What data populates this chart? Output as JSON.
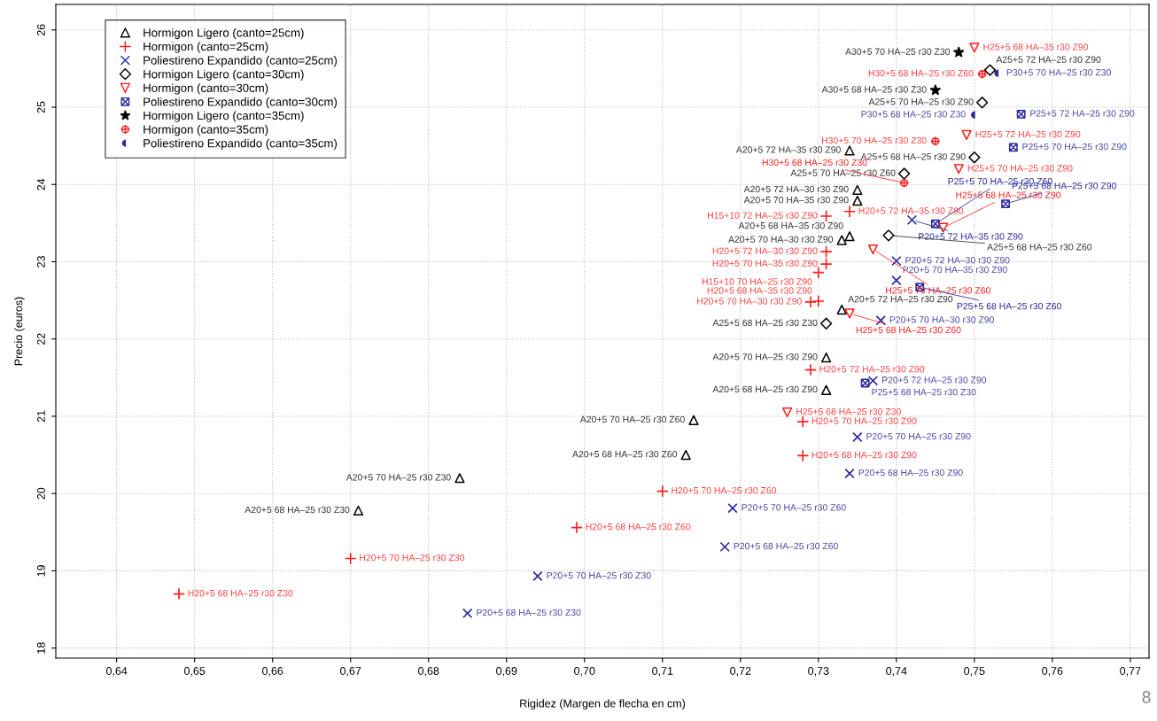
{
  "chart_data": {
    "type": "scatter",
    "xlabel": "Rigidez (Margen de flecha en cm)",
    "ylabel": "Precio (euros)",
    "xlim": [
      0.6322,
      0.7724
    ],
    "ylim": [
      17.87,
      26.33
    ],
    "xticks": [
      {
        "value": 0.64,
        "label": "0,64"
      },
      {
        "value": 0.65,
        "label": "0,65"
      },
      {
        "value": 0.66,
        "label": "0,66"
      },
      {
        "value": 0.67,
        "label": "0,67"
      },
      {
        "value": 0.68,
        "label": "0,68"
      },
      {
        "value": 0.69,
        "label": "0,69"
      },
      {
        "value": 0.7,
        "label": "0,70"
      },
      {
        "value": 0.71,
        "label": "0,71"
      },
      {
        "value": 0.72,
        "label": "0,72"
      },
      {
        "value": 0.73,
        "label": "0,73"
      },
      {
        "value": 0.74,
        "label": "0,74"
      },
      {
        "value": 0.75,
        "label": "0,75"
      },
      {
        "value": 0.76,
        "label": "0,76"
      },
      {
        "value": 0.77,
        "label": "0,77"
      }
    ],
    "yticks": [
      18,
      19,
      20,
      21,
      22,
      23,
      24,
      25,
      26
    ],
    "grid": true,
    "legend": "top left",
    "series": [
      {
        "name": "Hormigon Ligero (canto=25cm)",
        "color": "#000000",
        "marker": "triangle",
        "x": [
          0.734,
          0.735,
          0.735,
          0.734,
          0.733,
          0.733,
          0.731,
          0.731,
          0.714,
          0.713,
          0.684,
          0.671
        ],
        "values": [
          24.44,
          23.93,
          23.79,
          23.33,
          23.28,
          22.38,
          21.76,
          21.34,
          20.95,
          20.5,
          20.2,
          19.78
        ]
      },
      {
        "name": "Hormigon (canto=25cm)",
        "color": "#ff2020",
        "marker": "plus",
        "x": [
          0.734,
          0.731,
          0.731,
          0.731,
          0.73,
          0.729,
          0.73,
          0.729,
          0.728,
          0.728,
          0.71,
          0.699,
          0.67,
          0.648
        ],
        "values": [
          23.65,
          23.59,
          23.13,
          22.97,
          22.86,
          22.48,
          22.49,
          21.6,
          20.93,
          20.49,
          20.03,
          19.56,
          19.16,
          18.7
        ]
      },
      {
        "name": "Poliestireno Expandido (canto=25cm)",
        "color": "#2a2a9a",
        "marker": "cross",
        "x": [
          0.742,
          0.74,
          0.74,
          0.738,
          0.737,
          0.735,
          0.734,
          0.719,
          0.718,
          0.694,
          0.685
        ],
        "values": [
          23.54,
          23.01,
          22.76,
          22.24,
          21.46,
          20.73,
          20.26,
          19.81,
          19.31,
          18.93,
          18.45
        ]
      },
      {
        "name": "Hormigon Ligero (canto=30cm)",
        "color": "#000000",
        "marker": "diamond",
        "x": [
          0.752,
          0.751,
          0.75,
          0.741,
          0.739,
          0.731
        ],
        "values": [
          25.48,
          25.06,
          24.35,
          24.14,
          23.34,
          22.2
        ]
      },
      {
        "name": "Hormigon (canto=30cm)",
        "color": "#ff2020",
        "marker": "triangle_down",
        "x": [
          0.75,
          0.749,
          0.748,
          0.746,
          0.737,
          0.734,
          0.726
        ],
        "values": [
          25.77,
          24.64,
          24.2,
          23.44,
          23.16,
          22.33,
          21.05
        ]
      },
      {
        "name": "Poliestireno Expandido (canto=30cm)",
        "color": "#2a2a9a",
        "x": [
          0.756,
          0.755,
          0.754,
          0.745,
          0.743,
          0.736
        ],
        "values": [
          24.91,
          24.48,
          23.75,
          23.49,
          22.67,
          21.43
        ]
      },
      {
        "name": "Hormigon Ligero (canto=35cm)",
        "color": "#000000",
        "marker": "star",
        "x": [
          0.748,
          0.745
        ],
        "values": [
          25.71,
          25.22
        ]
      },
      {
        "name": "Hormigon (canto=35cm)",
        "color": "#ff2020",
        "x": [
          0.751,
          0.745,
          0.741
        ],
        "values": [
          25.43,
          24.56,
          24.02
        ]
      },
      {
        "name": "Poliestireno Expandido (canto=35cm)",
        "color": "#2a2a9a",
        "x": [
          0.753,
          0.75
        ],
        "values": [
          25.44,
          24.9
        ]
      }
    ],
    "annotations": [
      {
        "text": "A20+5 72 HA–35 r30 Z90",
        "x": 0.734,
        "y": 24.44
      },
      {
        "text": "A20+5 72 HA–30 r30 Z90",
        "x": 0.735,
        "y": 23.93
      },
      {
        "text": "A20+5 70 HA–35 r30 Z90",
        "x": 0.735,
        "y": 23.79
      },
      {
        "text": "A20+5 68 HA–35 r30 Z90",
        "x": 0.734,
        "y": 23.33
      },
      {
        "text": "A20+5 70 HA–30 r30 Z90",
        "x": 0.733,
        "y": 23.28
      },
      {
        "text": "A20+5 72 HA–25 r30 Z90",
        "x": 0.733,
        "y": 22.38
      },
      {
        "text": "A20+5 70 HA–25 r30 Z90",
        "x": 0.731,
        "y": 21.76
      },
      {
        "text": "A20+5 68 HA–25 r30 Z90",
        "x": 0.731,
        "y": 21.34
      },
      {
        "text": "A20+5 70 HA–25 r30 Z60",
        "x": 0.714,
        "y": 20.95
      },
      {
        "text": "A20+5 68 HA–25 r30 Z60",
        "x": 0.713,
        "y": 20.5
      },
      {
        "text": "A20+5 70 HA–25 r30 Z30",
        "x": 0.684,
        "y": 20.2
      },
      {
        "text": "A20+5 68 HA–25 r30 Z30",
        "x": 0.671,
        "y": 19.78
      },
      {
        "text": "H20+5 72 HA–35 r30 Z90",
        "x": 0.734,
        "y": 23.65
      },
      {
        "text": "H15+10 72 HA–25 r30 Z90",
        "x": 0.731,
        "y": 23.59
      },
      {
        "text": "H20+5 72 HA–30 r30 Z90",
        "x": 0.731,
        "y": 23.13
      },
      {
        "text": "H20+5 70 HA–35 r30 Z90",
        "x": 0.731,
        "y": 22.97
      },
      {
        "text": "H15+10 70 HA–25 r30 Z90",
        "x": 0.73,
        "y": 22.86
      },
      {
        "text": "H20+5 70 HA–30 r30 Z90",
        "x": 0.729,
        "y": 22.48
      },
      {
        "text": "H20+5 68 HA–35 r30 Z90",
        "x": 0.73,
        "y": 22.49
      },
      {
        "text": "H20+5 72 HA–25 r30 Z90",
        "x": 0.729,
        "y": 21.6
      },
      {
        "text": "H20+5 70 HA–25 r30 Z90",
        "x": 0.728,
        "y": 20.93
      },
      {
        "text": "H20+5 68 HA–25 r30 Z90",
        "x": 0.728,
        "y": 20.49
      },
      {
        "text": "H20+5 70 HA–25 r30 Z60",
        "x": 0.71,
        "y": 20.03
      },
      {
        "text": "H20+5 68 HA–25 r30 Z60",
        "x": 0.699,
        "y": 19.56
      },
      {
        "text": "H20+5 70 HA–25 r30 Z30",
        "x": 0.67,
        "y": 19.16
      },
      {
        "text": "H20+5 68 HA–25 r30 Z30",
        "x": 0.648,
        "y": 18.7
      },
      {
        "text": "P20+5 72 HA–35 r30 Z90",
        "x": 0.742,
        "y": 23.54
      },
      {
        "text": "P20+5 72 HA–30 r30 Z90",
        "x": 0.74,
        "y": 23.01
      },
      {
        "text": "P20+5 70 HA–35 r30 Z90",
        "x": 0.74,
        "y": 22.76
      },
      {
        "text": "P20+5 70 HA–30 r30 Z90",
        "x": 0.738,
        "y": 22.24
      },
      {
        "text": "P20+5 72 HA–25 r30 Z90",
        "x": 0.737,
        "y": 21.46
      },
      {
        "text": "P20+5 70 HA–25 r30 Z90",
        "x": 0.735,
        "y": 20.73
      },
      {
        "text": "P20+5 68 HA–25 r30 Z90",
        "x": 0.734,
        "y": 20.26
      },
      {
        "text": "P20+5 70 HA–25 r30 Z60",
        "x": 0.719,
        "y": 19.81
      },
      {
        "text": "P20+5 68 HA–25 r30 Z60",
        "x": 0.718,
        "y": 19.31
      },
      {
        "text": "P20+5 70 HA–25 r30 Z30",
        "x": 0.694,
        "y": 18.93
      },
      {
        "text": "P20+5 68 HA–25 r30 Z30",
        "x": 0.685,
        "y": 18.45
      },
      {
        "text": "A25+5 72 HA–25 r30 Z90",
        "x": 0.752,
        "y": 25.48
      },
      {
        "text": "A25+5 70 HA–25 r30 Z90",
        "x": 0.751,
        "y": 25.06
      },
      {
        "text": "A25+5 68 HA–25 r30 Z90",
        "x": 0.75,
        "y": 24.35
      },
      {
        "text": "A25+5 70 HA–25 r30 Z60",
        "x": 0.741,
        "y": 24.14
      },
      {
        "text": "A25+5 68 HA–25 r30 Z60",
        "x": 0.739,
        "y": 23.34
      },
      {
        "text": "A25+5 68 HA–25 r30 Z30",
        "x": 0.731,
        "y": 22.2
      },
      {
        "text": "H25+5 68 HA–35 r30 Z90",
        "x": 0.75,
        "y": 25.77
      },
      {
        "text": "H25+5 72 HA–25 r30 Z90",
        "x": 0.749,
        "y": 24.64
      },
      {
        "text": "H25+5 70 HA–25 r30 Z90",
        "x": 0.748,
        "y": 24.2
      },
      {
        "text": "H25+5 68 HA–25 r30 Z90",
        "x": 0.746,
        "y": 23.44
      },
      {
        "text": "H25+5 70 HA–25 r30 Z60",
        "x": 0.737,
        "y": 23.16
      },
      {
        "text": "H25+5 68 HA–25 r30 Z60",
        "x": 0.734,
        "y": 22.33
      },
      {
        "text": "H25+5 68 HA–25 r30 Z30",
        "x": 0.726,
        "y": 21.05
      },
      {
        "text": "P25+5 72 HA–25 r30 Z90",
        "x": 0.756,
        "y": 24.91
      },
      {
        "text": "P25+5 70 HA–25 r30 Z90",
        "x": 0.755,
        "y": 24.48
      },
      {
        "text": "P25+5 68 HA–25 r30 Z90",
        "x": 0.754,
        "y": 23.75
      },
      {
        "text": "P25+5 70 HA–25 r30 Z60",
        "x": 0.745,
        "y": 23.49
      },
      {
        "text": "P25+5 68 HA–25 r30 Z60",
        "x": 0.743,
        "y": 22.67
      },
      {
        "text": "P25+5 68 HA–25 r30 Z30",
        "x": 0.736,
        "y": 21.43
      },
      {
        "text": "A30+5 70 HA–25 r30 Z30",
        "x": 0.748,
        "y": 25.71
      },
      {
        "text": "A30+5 68 HA–25 r30 Z30",
        "x": 0.745,
        "y": 25.22
      },
      {
        "text": "H30+5 68 HA–25 r30 Z60",
        "x": 0.751,
        "y": 25.43
      },
      {
        "text": "H30+5 70 HA–25 r30 Z30",
        "x": 0.745,
        "y": 24.56
      },
      {
        "text": "H30+5 68 HA–25 r30 Z30",
        "x": 0.741,
        "y": 24.02
      },
      {
        "text": "P30+5 70 HA–25 r30 Z30",
        "x": 0.753,
        "y": 25.44
      },
      {
        "text": "P30+5 68 HA–25 r30 Z30",
        "x": 0.75,
        "y": 24.9
      },
      "8"
    ]
  }
}
